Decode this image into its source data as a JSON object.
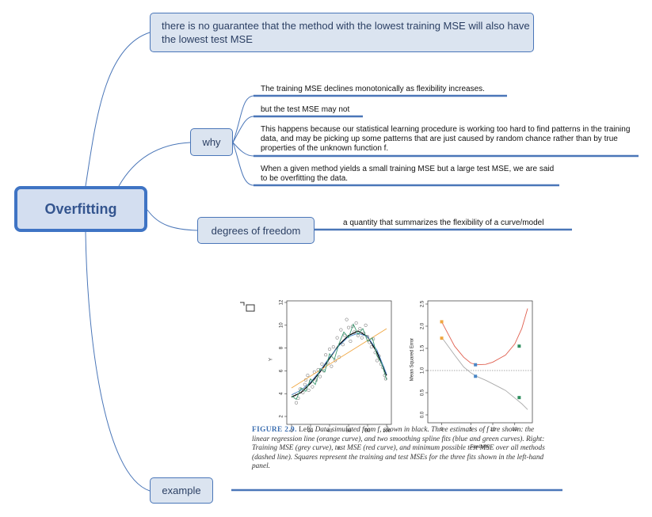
{
  "root": {
    "label": "Overfitting"
  },
  "nodes": {
    "guarantee": "there is no guarantee that the method with the lowest training MSE will also have the lowest test MSE",
    "why": "why",
    "dof": "degrees of freedom",
    "example": "example"
  },
  "why_items": [
    "The training MSE declines monotonically as flexibility increases.",
    "but the test MSE may not",
    "This happens because our statistical learning procedure is working too hard to find patterns in the training data, and may be picking up some patterns that are just caused by random chance rather than by true properties of the unknown function f.",
    "When a given method yields a small training MSE but a large test MSE, we are said to be overfitting the data."
  ],
  "dof_item": "a quantity that summarizes the flexibility of a curve/model",
  "figure": {
    "caption_label": "FIGURE 2.9.",
    "caption_left": "Left:",
    "caption_text": "Data simulated from f, shown in black. Three estimates of f are shown: the linear regression line (orange curve), and two smoothing spline fits (blue and green curves). Right: Training MSE (grey curve), test MSE (red curve), and minimum possible test MSE over all methods (dashed line). Squares represent the training and test MSEs for the three fits shown in the left-hand panel."
  },
  "chart_data": [
    {
      "type": "scatter",
      "xlabel": "X",
      "ylabel": "Y",
      "xlim": [
        0,
        100
      ],
      "ylim": [
        2,
        12
      ],
      "xticks": [
        "0",
        "20",
        "40",
        "60",
        "80",
        "100"
      ],
      "yticks": [
        "2",
        "4",
        "6",
        "8",
        "10",
        "12"
      ],
      "points": [
        [
          3,
          3.9
        ],
        [
          5,
          3.2
        ],
        [
          7,
          3.6
        ],
        [
          9,
          4.4
        ],
        [
          12,
          4.1
        ],
        [
          14,
          4.8
        ],
        [
          15,
          5.2
        ],
        [
          17,
          5.6
        ],
        [
          18,
          4.3
        ],
        [
          20,
          5.1
        ],
        [
          22,
          4.6
        ],
        [
          24,
          5.9
        ],
        [
          26,
          5.2
        ],
        [
          28,
          6.1
        ],
        [
          30,
          5.5
        ],
        [
          32,
          6.6
        ],
        [
          34,
          6.0
        ],
        [
          36,
          7.4
        ],
        [
          38,
          6.7
        ],
        [
          40,
          7.9
        ],
        [
          42,
          6.4
        ],
        [
          44,
          8.1
        ],
        [
          46,
          6.9
        ],
        [
          48,
          8.9
        ],
        [
          50,
          7.2
        ],
        [
          52,
          9.6
        ],
        [
          54,
          8.3
        ],
        [
          56,
          9.1
        ],
        [
          58,
          10.5
        ],
        [
          60,
          9.8
        ],
        [
          62,
          8.6
        ],
        [
          64,
          9.9
        ],
        [
          66,
          9.4
        ],
        [
          68,
          10.2
        ],
        [
          70,
          9.1
        ],
        [
          72,
          9.7
        ],
        [
          74,
          8.9
        ],
        [
          76,
          9.3
        ],
        [
          78,
          10.0
        ],
        [
          80,
          9.0
        ],
        [
          82,
          8.5
        ],
        [
          84,
          8.1
        ],
        [
          86,
          8.8
        ],
        [
          88,
          7.6
        ],
        [
          90,
          6.9
        ],
        [
          92,
          7.3
        ],
        [
          94,
          6.6
        ],
        [
          96,
          6.3
        ],
        [
          98,
          5.6
        ],
        [
          99,
          5.3
        ]
      ],
      "series": [
        {
          "name": "",
          "color": "#000000",
          "x": [
            0,
            10,
            20,
            30,
            40,
            50,
            60,
            70,
            80,
            90,
            100
          ],
          "y": [
            3.7,
            4.1,
            4.9,
            5.9,
            7.1,
            8.3,
            9.1,
            9.5,
            9.0,
            7.6,
            5.6
          ]
        },
        {
          "name": "",
          "color": "#f0a640",
          "x": [
            0,
            100
          ],
          "y": [
            4.5,
            9.7
          ]
        },
        {
          "name": "",
          "color": "#4a86c6",
          "x": [
            0,
            10,
            20,
            30,
            40,
            50,
            60,
            70,
            80,
            90,
            100
          ],
          "y": [
            3.9,
            4.3,
            5.0,
            6.0,
            7.2,
            8.2,
            9.0,
            9.3,
            9.0,
            7.8,
            5.7
          ]
        },
        {
          "name": "",
          "color": "#3d9a72",
          "x": [
            0,
            5,
            10,
            15,
            20,
            25,
            30,
            35,
            40,
            45,
            50,
            55,
            60,
            65,
            70,
            75,
            80,
            85,
            90,
            95,
            100
          ],
          "y": [
            3.8,
            3.5,
            4.5,
            4.2,
            5.3,
            4.8,
            6.2,
            5.9,
            7.5,
            7.0,
            8.4,
            9.4,
            8.9,
            10.1,
            9.2,
            9.7,
            8.6,
            8.9,
            7.3,
            6.6,
            5.2
          ]
        }
      ]
    },
    {
      "type": "line",
      "xlabel": "Flexibility",
      "ylabel": "Mean Squared Error",
      "xlim": [
        1.5,
        30
      ],
      "ylim": [
        0,
        2.5
      ],
      "xticks": [
        "2",
        "5",
        "10",
        "20"
      ],
      "yticks": [
        "0.0",
        "0.5",
        "1.0",
        "1.5",
        "2.0",
        "2.5"
      ],
      "series": [
        {
          "name": "",
          "color": "#aaaaaa",
          "x": [
            2,
            3,
            4,
            5,
            6,
            8,
            10,
            15,
            20,
            25,
            30
          ],
          "y": [
            1.75,
            1.35,
            1.08,
            0.95,
            0.87,
            0.78,
            0.7,
            0.55,
            0.38,
            0.25,
            0.12
          ]
        },
        {
          "name": "",
          "color": "#e06050",
          "x": [
            2,
            3,
            4,
            5,
            6,
            8,
            10,
            15,
            20,
            25,
            30
          ],
          "y": [
            2.1,
            1.55,
            1.3,
            1.17,
            1.13,
            1.14,
            1.19,
            1.35,
            1.6,
            1.95,
            2.4
          ]
        }
      ],
      "reference_line": 1.0,
      "squares": [
        {
          "x": 2,
          "y": 2.1,
          "color": "#f0a640"
        },
        {
          "x": 2,
          "y": 1.73,
          "color": "#f0a640"
        },
        {
          "x": 5.8,
          "y": 1.13,
          "color": "#4a86c6"
        },
        {
          "x": 5.8,
          "y": 0.87,
          "color": "#4a86c6"
        },
        {
          "x": 23,
          "y": 1.55,
          "color": "#2f8f5f"
        },
        {
          "x": 23,
          "y": 0.39,
          "color": "#2f8f5f"
        }
      ]
    }
  ]
}
